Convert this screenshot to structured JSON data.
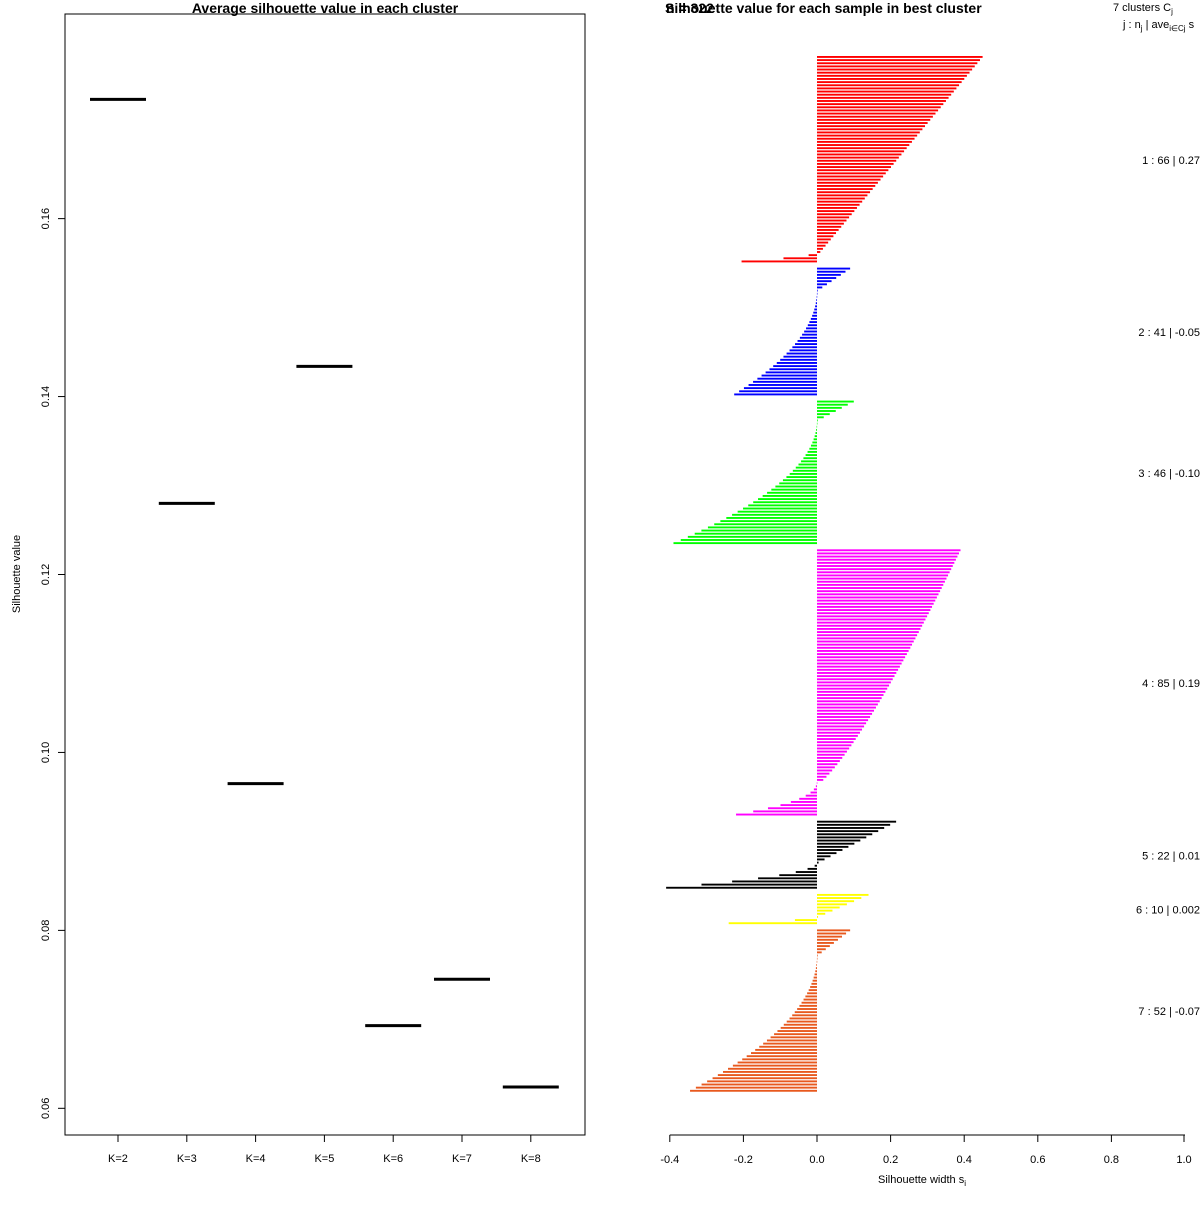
{
  "chart_data": [
    {
      "type": "scatter",
      "title": "Average silhouette value in each cluster",
      "xlabel": "",
      "ylabel": "Silhouette value",
      "ylim": [
        0.057,
        0.183
      ],
      "yticks": [
        "0.06",
        "0.08",
        "0.10",
        "0.12",
        "0.14",
        "0.16"
      ],
      "ytick_values": [
        0.06,
        0.08,
        0.1,
        0.12,
        0.14,
        0.16
      ],
      "categories": [
        "K=2",
        "K=3",
        "K=4",
        "K=5",
        "K=6",
        "K=7",
        "K=8"
      ],
      "values": [
        0.1734,
        0.128,
        0.0965,
        0.1434,
        0.0693,
        0.0745,
        0.0624
      ]
    },
    {
      "type": "bar",
      "title": "Silhouette value for each sample in best cluster",
      "title_overlap_text": "n = 322",
      "xlabel": "Silhouette width s",
      "xlabel_sub": "i",
      "xlim": [
        -0.4,
        1.0
      ],
      "xticks": [
        "-0.4",
        "-0.2",
        "0.0",
        "0.2",
        "0.4",
        "0.6",
        "0.8",
        "1.0"
      ],
      "xtick_values": [
        -0.4,
        -0.2,
        0.0,
        0.2,
        0.4,
        0.6,
        0.8,
        1.0
      ],
      "header_line1": "7 clusters  C",
      "header_line1_sub": "j",
      "header_line2": "j :  n",
      "header_line2_sub1": "j",
      "header_line2_mid": " | ave",
      "header_line2_sub2": "i∈Cj",
      "header_line2_end": "  s",
      "series": [
        {
          "name": "1",
          "n": 66,
          "label": "1 :  66  |  0.27",
          "color": "#ff0000",
          "max": 0.45,
          "min": -0.205,
          "pos_shape": 1.0,
          "neg_count": 3,
          "neg_shape": 2.0
        },
        {
          "name": "2",
          "n": 41,
          "label": "2 :  41  |  -0.05",
          "color": "#0000ff",
          "max": 0.09,
          "min": -0.225,
          "pos_shape": 1.0,
          "neg_count": 33,
          "neg_shape": 2.0
        },
        {
          "name": "3",
          "n": 46,
          "label": "3 :  46  |  -0.10",
          "color": "#00ff00",
          "max": 0.1,
          "min": -0.39,
          "pos_shape": 1.0,
          "neg_count": 39,
          "neg_shape": 2.0
        },
        {
          "name": "4",
          "n": 85,
          "label": "4 :  85  |  0.19",
          "color": "#ff00ff",
          "max": 0.39,
          "min": -0.22,
          "pos_shape": 0.8,
          "neg_count": 11,
          "neg_shape": 2.5
        },
        {
          "name": "5",
          "n": 22,
          "label": "5 :  22  |  0.01",
          "color": "#000000",
          "max": 0.215,
          "min": -0.41,
          "pos_shape": 1.0,
          "neg_count": 8,
          "neg_shape": 2.0
        },
        {
          "name": "6",
          "n": 10,
          "label": "6 :  10  |  0.002",
          "color": "#ffff00",
          "max": 0.14,
          "min": -0.24,
          "pos_shape": 1.0,
          "neg_count": 2,
          "neg_shape": 2.0
        },
        {
          "name": "7",
          "n": 52,
          "label": "7 :  52  |  -0.07",
          "color": "#e8591e",
          "max": 0.09,
          "min": -0.345,
          "pos_shape": 1.0,
          "neg_count": 43,
          "neg_shape": 2.0
        }
      ]
    }
  ]
}
